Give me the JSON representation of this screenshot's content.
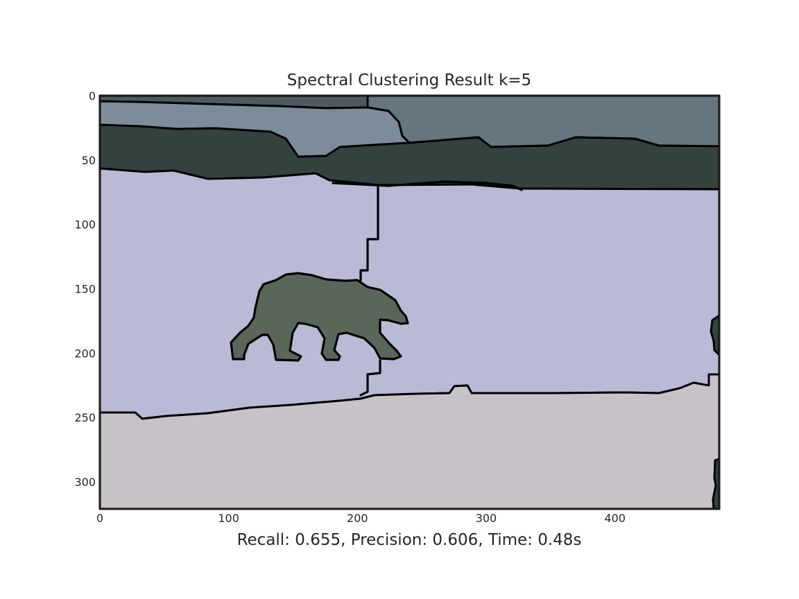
{
  "chart_data": {
    "type": "heatmap",
    "title": "Spectral Clustering Result k=5",
    "caption": "Recall: 0.655, Precision: 0.606, Time: 0.48s",
    "xlabel": "",
    "ylabel": "",
    "xlim": [
      0,
      481
    ],
    "ylim": [
      321,
      0
    ],
    "x_ticks": [
      0,
      100,
      200,
      300,
      400
    ],
    "y_ticks": [
      0,
      50,
      100,
      150,
      200,
      250,
      300
    ],
    "grid": false,
    "segments": [
      {
        "name": "sky-top-dark",
        "color": "#4e5a5e"
      },
      {
        "name": "sky-band-light",
        "color": "#7d8c9b"
      },
      {
        "name": "sky-band-right",
        "color": "#66767f"
      },
      {
        "name": "treeline-dark",
        "color": "#34423f"
      },
      {
        "name": "snow-lavender",
        "color": "#b8bad6"
      },
      {
        "name": "bear",
        "color": "#5a6659"
      },
      {
        "name": "ground-gray",
        "color": "#c8c1c8"
      }
    ]
  }
}
